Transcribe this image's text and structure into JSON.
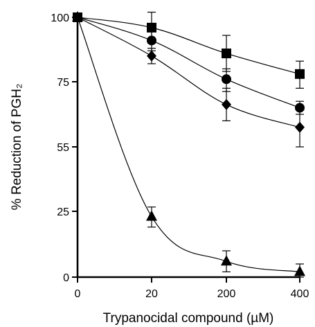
{
  "chart_data": {
    "type": "line",
    "title": "",
    "xlabel": "Trypanocidal compound (µM)",
    "ylabel": "% Reduction of PGH₂",
    "categories": [
      "0",
      "20",
      "200",
      "400"
    ],
    "y_ticks": [
      0,
      25,
      55,
      75,
      100
    ],
    "ylim": [
      0,
      100
    ],
    "grid": false,
    "legend": "none",
    "series": [
      {
        "marker": "square",
        "values": [
          100,
          96,
          86,
          78
        ],
        "errors": [
          0,
          6,
          7,
          5
        ]
      },
      {
        "marker": "circle",
        "values": [
          100,
          91,
          76,
          67
        ],
        "errors": [
          0,
          4,
          4,
          2
        ]
      },
      {
        "marker": "diamond",
        "values": [
          100,
          85,
          68,
          61
        ],
        "errors": [
          0,
          3,
          5,
          6
        ]
      },
      {
        "marker": "triangle",
        "values": [
          100,
          23,
          6,
          2
        ],
        "errors": [
          0,
          4,
          4,
          3
        ]
      }
    ]
  }
}
